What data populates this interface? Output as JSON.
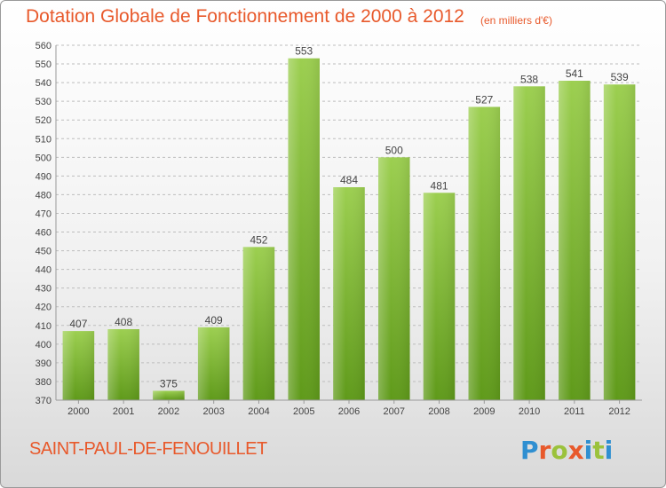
{
  "chart_data": {
    "type": "bar",
    "title": "Dotation Globale de Fonctionnement de 2000 à 2012",
    "unit_label": "(en milliers d'€)",
    "xlabel": "",
    "ylabel": "",
    "categories": [
      "2000",
      "2001",
      "2002",
      "2003",
      "2004",
      "2005",
      "2006",
      "2007",
      "2008",
      "2009",
      "2010",
      "2011",
      "2012"
    ],
    "values": [
      407,
      408,
      375,
      409,
      452,
      553,
      484,
      500,
      481,
      527,
      538,
      541,
      539
    ],
    "ylim": [
      370,
      560
    ],
    "ytick_step": 10,
    "grid": "horizontal dashed",
    "legend": "none",
    "bar_color_top": "#9ccf50",
    "bar_color_bottom": "#5f9a1a"
  },
  "footer": {
    "commune": "SAINT-PAUL-DE-FENOUILLET",
    "logo": [
      "P",
      "r",
      "o",
      "x",
      "i",
      "t",
      "i"
    ],
    "logo_colors": [
      "#2f8fd1",
      "#e8592b",
      "#9bc23c",
      "#e8592b",
      "#2f8fd1",
      "#9bc23c",
      "#2f8fd1"
    ]
  }
}
